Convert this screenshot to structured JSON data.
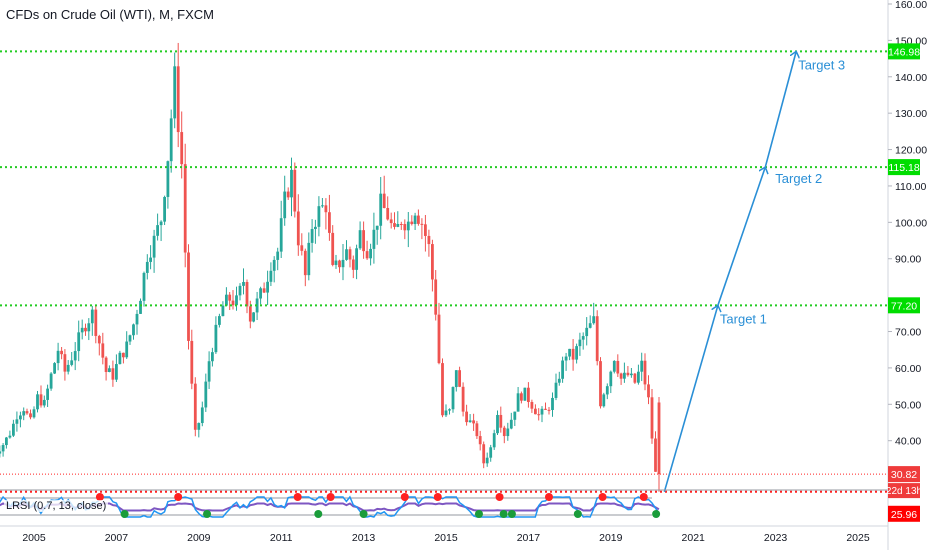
{
  "header": {
    "title": "CFDs on Crude Oil (WTI), M, FXCM"
  },
  "indicator": {
    "label": "LRSI (0.7, 13, close)",
    "ticks": [
      "0.00"
    ]
  },
  "colors": {
    "up": "#26a69a",
    "down": "#ef5350",
    "level_line": "#22cc22",
    "level_box": "#00dd00",
    "price_line": "#ff2222",
    "target_line": "#2a8fd6",
    "lrsi_line": "#2196f3",
    "lrsi_dark": "#7e57c2",
    "lrsi_low": "#ef2222"
  },
  "chart_data": {
    "type": "candlestick",
    "title": "CFDs on Crude Oil (WTI), M, FXCM",
    "x_tick_labels": [
      "2005",
      "2007",
      "2009",
      "2011",
      "2013",
      "2015",
      "2017",
      "2019",
      "2021",
      "2023",
      "2025"
    ],
    "y_tick_labels": [
      "40.00",
      "50.00",
      "60.00",
      "70.00",
      "90.00",
      "100.00",
      "110.00",
      "120.00",
      "130.00",
      "140.00",
      "150.00",
      "160.00"
    ],
    "y_ticks": [
      40,
      50,
      60,
      70,
      90,
      100,
      110,
      120,
      130,
      140,
      150,
      160
    ],
    "ylim": [
      27,
      160
    ],
    "xlim": [
      2004.0,
      2026.2
    ],
    "price_axis": "right",
    "horizontal_levels": [
      {
        "label": "146.98",
        "value": 146.98,
        "style": "green dotted"
      },
      {
        "label": "115.18",
        "value": 115.18,
        "style": "green dotted"
      },
      {
        "label": "77.20",
        "value": 77.2,
        "style": "green dotted"
      },
      {
        "label": "25.96",
        "value": 25.96,
        "style": "red dotted"
      }
    ],
    "current_price": {
      "label": "30.82",
      "value": 30.82
    },
    "countdown": "22d 13h",
    "targets": [
      {
        "label": "Target 1",
        "value": 77.2,
        "date": 2021.6
      },
      {
        "label": "Target 2",
        "value": 115.18,
        "date": 2022.75
      },
      {
        "label": "Target 3",
        "value": 146.98,
        "date": 2023.5
      }
    ],
    "projection_start": {
      "date": 2020.3,
      "value": 25.96
    },
    "monthly_close": [
      [
        2004.0,
        35
      ],
      [
        2004.17,
        37
      ],
      [
        2004.33,
        39
      ],
      [
        2004.5,
        42
      ],
      [
        2004.67,
        47
      ],
      [
        2004.83,
        49
      ],
      [
        2005.0,
        45
      ],
      [
        2005.17,
        52
      ],
      [
        2005.33,
        50
      ],
      [
        2005.5,
        58
      ],
      [
        2005.67,
        65
      ],
      [
        2005.83,
        59
      ],
      [
        2006.0,
        63
      ],
      [
        2006.17,
        68
      ],
      [
        2006.33,
        72
      ],
      [
        2006.5,
        75
      ],
      [
        2006.67,
        67
      ],
      [
        2006.83,
        59
      ],
      [
        2007.0,
        58
      ],
      [
        2007.17,
        63
      ],
      [
        2007.33,
        66
      ],
      [
        2007.5,
        72
      ],
      [
        2007.67,
        80
      ],
      [
        2007.83,
        91
      ],
      [
        2008.0,
        95
      ],
      [
        2008.17,
        101
      ],
      [
        2008.33,
        118
      ],
      [
        2008.5,
        140
      ],
      [
        2008.67,
        116
      ],
      [
        2008.83,
        68
      ],
      [
        2009.0,
        41
      ],
      [
        2009.17,
        49
      ],
      [
        2009.33,
        62
      ],
      [
        2009.5,
        70
      ],
      [
        2009.67,
        77
      ],
      [
        2009.83,
        79
      ],
      [
        2010.0,
        78
      ],
      [
        2010.17,
        84
      ],
      [
        2010.33,
        74
      ],
      [
        2010.5,
        78
      ],
      [
        2010.67,
        82
      ],
      [
        2010.83,
        89
      ],
      [
        2011.0,
        92
      ],
      [
        2011.17,
        106
      ],
      [
        2011.33,
        113
      ],
      [
        2011.5,
        96
      ],
      [
        2011.67,
        85
      ],
      [
        2011.83,
        99
      ],
      [
        2012.0,
        103
      ],
      [
        2012.17,
        105
      ],
      [
        2012.33,
        86
      ],
      [
        2012.5,
        89
      ],
      [
        2012.67,
        92
      ],
      [
        2012.83,
        88
      ],
      [
        2013.0,
        97
      ],
      [
        2013.17,
        93
      ],
      [
        2013.33,
        97
      ],
      [
        2013.5,
        105
      ],
      [
        2013.67,
        102
      ],
      [
        2013.83,
        96
      ],
      [
        2014.0,
        101
      ],
      [
        2014.17,
        100
      ],
      [
        2014.33,
        104
      ],
      [
        2014.5,
        100
      ],
      [
        2014.67,
        93
      ],
      [
        2014.83,
        76
      ],
      [
        2015.0,
        47
      ],
      [
        2015.17,
        48
      ],
      [
        2015.33,
        60
      ],
      [
        2015.5,
        48
      ],
      [
        2015.67,
        45
      ],
      [
        2015.83,
        42
      ],
      [
        2016.0,
        34
      ],
      [
        2016.17,
        38
      ],
      [
        2016.33,
        48
      ],
      [
        2016.5,
        42
      ],
      [
        2016.67,
        46
      ],
      [
        2016.83,
        52
      ],
      [
        2017.0,
        53
      ],
      [
        2017.17,
        50
      ],
      [
        2017.33,
        47
      ],
      [
        2017.5,
        48
      ],
      [
        2017.67,
        51
      ],
      [
        2017.83,
        58
      ],
      [
        2018.0,
        64
      ],
      [
        2018.17,
        63
      ],
      [
        2018.33,
        67
      ],
      [
        2018.5,
        70
      ],
      [
        2018.67,
        73
      ],
      [
        2018.83,
        51
      ],
      [
        2019.0,
        56
      ],
      [
        2019.17,
        63
      ],
      [
        2019.33,
        57
      ],
      [
        2019.5,
        58
      ],
      [
        2019.67,
        56
      ],
      [
        2019.83,
        61
      ],
      [
        2020.0,
        51
      ],
      [
        2020.17,
        30.82
      ]
    ],
    "lrsi": {
      "ylim": [
        0,
        1
      ],
      "ticks": [
        0
      ],
      "overbought_markers": [
        2006.6,
        2008.5,
        2011.4,
        2012.2,
        2014.0,
        2014.8,
        2016.3,
        2017.5,
        2018.8,
        2019.8
      ],
      "oversold_markers": [
        2007.2,
        2009.2,
        2011.9,
        2013.0,
        2015.8,
        2016.4,
        2016.6,
        2018.2,
        2020.1
      ]
    }
  }
}
